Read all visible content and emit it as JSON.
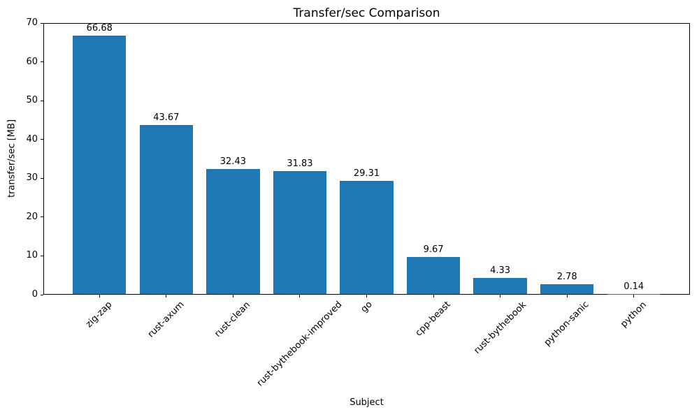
{
  "chart_data": {
    "type": "bar",
    "title": "Transfer/sec Comparison",
    "xlabel": "Subject",
    "ylabel": "transfer/sec [MB]",
    "categories": [
      "zig-zap",
      "rust-axum",
      "rust-clean",
      "rust-bythebook-improved",
      "go",
      "cpp-beast",
      "rust-bythebook",
      "python-sanic",
      "python"
    ],
    "values": [
      66.68,
      43.67,
      32.43,
      31.83,
      29.31,
      9.67,
      4.33,
      2.78,
      0.14
    ],
    "value_labels": [
      "66.68",
      "43.67",
      "32.43",
      "31.83",
      "29.31",
      "9.67",
      "4.33",
      "2.78",
      "0.14"
    ],
    "ylim": [
      0,
      70
    ],
    "yticks": [
      0,
      10,
      20,
      30,
      40,
      50,
      60,
      70
    ],
    "bar_color": "#1f77b4",
    "grid": false,
    "legend": "none",
    "tick_rotation_deg": 45
  }
}
